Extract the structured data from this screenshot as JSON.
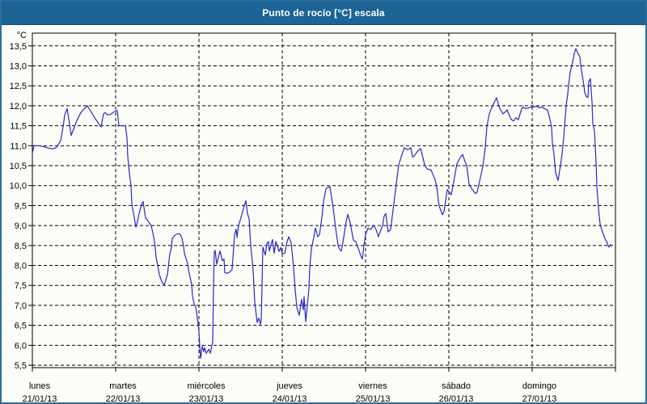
{
  "header": {
    "title": "Punto de rocío [°C] escala"
  },
  "colors": {
    "header_bg": "#1c6396",
    "header_border": "#0f4c78",
    "window_border": "#2f6d9a",
    "page_bg": "#fcfdf8",
    "plot_bg": "#fdfdf8",
    "grid": "#000000",
    "axis": "#000000",
    "line": "#2828c8",
    "title_text": "#ffffff",
    "label_text": "#000000"
  },
  "chart_data": {
    "type": "line",
    "title": "Punto de rocío [°C] escala",
    "xlabel": "",
    "ylabel": "°C",
    "grid": "dashed",
    "legend_position": "none",
    "ylim": [
      5.44,
      13.82
    ],
    "xlim_days": [
      0,
      7
    ],
    "y_ticks": [
      {
        "v": 5.5,
        "label": "5,5"
      },
      {
        "v": 6,
        "label": "6,0"
      },
      {
        "v": 6.5,
        "label": "6,5"
      },
      {
        "v": 7,
        "label": "7,0"
      },
      {
        "v": 7.5,
        "label": "7,5"
      },
      {
        "v": 8,
        "label": "8,0"
      },
      {
        "v": 8.5,
        "label": "8,5"
      },
      {
        "v": 9,
        "label": "9,0"
      },
      {
        "v": 9.5,
        "label": "9,5"
      },
      {
        "v": 10,
        "label": "10,0"
      },
      {
        "v": 10.5,
        "label": "10,5"
      },
      {
        "v": 11,
        "label": "11,0"
      },
      {
        "v": 11.5,
        "label": "11,5"
      },
      {
        "v": 12,
        "label": "12,0"
      },
      {
        "v": 12.5,
        "label": "12,5"
      },
      {
        "v": 13,
        "label": "13,0"
      },
      {
        "v": 13.5,
        "label": "13,5"
      }
    ],
    "x_tick_days": [
      0,
      1,
      2,
      3,
      4,
      5,
      6,
      7
    ],
    "day_labels": [
      {
        "t": 0,
        "name": "lunes",
        "date": "21/01/13"
      },
      {
        "t": 1,
        "name": "martes",
        "date": "22/01/13"
      },
      {
        "t": 2,
        "name": "miércoles",
        "date": "23/01/13"
      },
      {
        "t": 3,
        "name": "jueves",
        "date": "24/01/13"
      },
      {
        "t": 4,
        "name": "viernes",
        "date": "25/01/13"
      },
      {
        "t": 5,
        "name": "sábado",
        "date": "26/01/13"
      },
      {
        "t": 6,
        "name": "domingo",
        "date": "27/01/13"
      }
    ],
    "series": [
      {
        "name": "Punto de rocío [°C]",
        "color": "#2828c8",
        "points": [
          [
            0,
            10.8
          ],
          [
            0.019,
            11.0
          ],
          [
            0.078,
            11.0
          ],
          [
            0.146,
            10.97
          ],
          [
            0.194,
            10.94
          ],
          [
            0.243,
            10.92
          ],
          [
            0.291,
            10.96
          ],
          [
            0.34,
            11.13
          ],
          [
            0.369,
            11.47
          ],
          [
            0.388,
            11.77
          ],
          [
            0.417,
            11.93
          ],
          [
            0.437,
            11.67
          ],
          [
            0.466,
            11.26
          ],
          [
            0.505,
            11.47
          ],
          [
            0.534,
            11.63
          ],
          [
            0.583,
            11.83
          ],
          [
            0.621,
            11.92
          ],
          [
            0.66,
            12.0
          ],
          [
            0.699,
            11.87
          ],
          [
            0.728,
            11.77
          ],
          [
            0.757,
            11.67
          ],
          [
            0.796,
            11.55
          ],
          [
            0.825,
            11.47
          ],
          [
            0.854,
            11.8
          ],
          [
            0.874,
            11.83
          ],
          [
            0.903,
            11.77
          ],
          [
            0.942,
            11.79
          ],
          [
            0.981,
            11.85
          ],
          [
            1.019,
            11.88
          ],
          [
            1.039,
            11.5
          ],
          [
            1.117,
            11.5
          ],
          [
            1.136,
            11.2
          ],
          [
            1.146,
            10.72
          ],
          [
            1.165,
            10.3
          ],
          [
            1.184,
            10.0
          ],
          [
            1.194,
            9.54
          ],
          [
            1.223,
            9.2
          ],
          [
            1.243,
            8.96
          ],
          [
            1.262,
            9.1
          ],
          [
            1.282,
            9.3
          ],
          [
            1.311,
            9.53
          ],
          [
            1.33,
            9.6
          ],
          [
            1.359,
            9.18
          ],
          [
            1.379,
            9.14
          ],
          [
            1.408,
            9.05
          ],
          [
            1.427,
            9.0
          ],
          [
            1.456,
            8.72
          ],
          [
            1.476,
            8.45
          ],
          [
            1.485,
            8.2
          ],
          [
            1.505,
            8.0
          ],
          [
            1.524,
            7.77
          ],
          [
            1.553,
            7.6
          ],
          [
            1.583,
            7.5
          ],
          [
            1.621,
            7.77
          ],
          [
            1.65,
            8.28
          ],
          [
            1.67,
            8.45
          ],
          [
            1.68,
            8.68
          ],
          [
            1.718,
            8.77
          ],
          [
            1.757,
            8.8
          ],
          [
            1.777,
            8.77
          ],
          [
            1.796,
            8.68
          ],
          [
            1.816,
            8.48
          ],
          [
            1.825,
            8.3
          ],
          [
            1.864,
            8.05
          ],
          [
            1.874,
            7.9
          ],
          [
            1.893,
            7.7
          ],
          [
            1.913,
            7.54
          ],
          [
            1.922,
            7.23
          ],
          [
            1.942,
            7.05
          ],
          [
            1.961,
            6.95
          ],
          [
            1.971,
            6.84
          ],
          [
            1.99,
            6.52
          ],
          [
            2.0,
            6.35
          ],
          [
            2.01,
            5.95
          ],
          [
            2.019,
            5.67
          ],
          [
            2.039,
            5.98
          ],
          [
            2.058,
            5.84
          ],
          [
            2.068,
            5.94
          ],
          [
            2.087,
            5.8
          ],
          [
            2.117,
            5.9
          ],
          [
            2.136,
            5.8
          ],
          [
            2.155,
            6.0
          ],
          [
            2.165,
            6.08
          ],
          [
            2.175,
            7.5
          ],
          [
            2.184,
            8.33
          ],
          [
            2.194,
            8.38
          ],
          [
            2.214,
            8.03
          ],
          [
            2.252,
            8.36
          ],
          [
            2.282,
            8.12
          ],
          [
            2.301,
            8.16
          ],
          [
            2.311,
            7.82
          ],
          [
            2.34,
            7.8
          ],
          [
            2.379,
            7.85
          ],
          [
            2.398,
            7.9
          ],
          [
            2.427,
            8.77
          ],
          [
            2.447,
            8.91
          ],
          [
            2.456,
            8.7
          ],
          [
            2.476,
            9.0
          ],
          [
            2.505,
            9.2
          ],
          [
            2.544,
            9.5
          ],
          [
            2.563,
            9.62
          ],
          [
            2.583,
            9.3
          ],
          [
            2.602,
            9.17
          ],
          [
            2.621,
            8.5
          ],
          [
            2.641,
            8.1
          ],
          [
            2.65,
            7.9
          ],
          [
            2.67,
            7.08
          ],
          [
            2.689,
            6.74
          ],
          [
            2.699,
            6.57
          ],
          [
            2.718,
            6.68
          ],
          [
            2.738,
            6.53
          ],
          [
            2.748,
            6.63
          ],
          [
            2.757,
            7.5
          ],
          [
            2.767,
            8.46
          ],
          [
            2.796,
            8.26
          ],
          [
            2.816,
            8.55
          ],
          [
            2.835,
            8.6
          ],
          [
            2.845,
            8.36
          ],
          [
            2.883,
            8.65
          ],
          [
            2.903,
            8.3
          ],
          [
            2.922,
            8.6
          ],
          [
            2.942,
            8.5
          ],
          [
            2.961,
            8.35
          ],
          [
            2.981,
            8.45
          ],
          [
            3.0,
            8.3
          ],
          [
            3.029,
            8.3
          ],
          [
            3.058,
            8.6
          ],
          [
            3.078,
            8.72
          ],
          [
            3.107,
            8.57
          ],
          [
            3.136,
            7.96
          ],
          [
            3.155,
            7.4
          ],
          [
            3.175,
            6.95
          ],
          [
            3.204,
            6.75
          ],
          [
            3.233,
            7.15
          ],
          [
            3.252,
            6.89
          ],
          [
            3.262,
            7.22
          ],
          [
            3.282,
            6.59
          ],
          [
            3.301,
            7.0
          ],
          [
            3.32,
            7.42
          ],
          [
            3.33,
            7.96
          ],
          [
            3.35,
            8.43
          ],
          [
            3.379,
            8.7
          ],
          [
            3.398,
            8.94
          ],
          [
            3.427,
            8.72
          ],
          [
            3.447,
            8.77
          ],
          [
            3.476,
            9.2
          ],
          [
            3.495,
            9.6
          ],
          [
            3.524,
            9.92
          ],
          [
            3.544,
            9.95
          ],
          [
            3.573,
            9.97
          ],
          [
            3.592,
            9.7
          ],
          [
            3.612,
            9.44
          ],
          [
            3.641,
            8.94
          ],
          [
            3.67,
            8.5
          ],
          [
            3.689,
            8.4
          ],
          [
            3.709,
            8.36
          ],
          [
            3.738,
            8.7
          ],
          [
            3.767,
            9.1
          ],
          [
            3.786,
            9.28
          ],
          [
            3.816,
            9.07
          ],
          [
            3.854,
            8.63
          ],
          [
            3.883,
            8.6
          ],
          [
            3.913,
            8.43
          ],
          [
            3.942,
            8.25
          ],
          [
            3.961,
            8.16
          ],
          [
            3.981,
            8.5
          ],
          [
            4.0,
            8.77
          ],
          [
            4.029,
            8.94
          ],
          [
            4.058,
            8.9
          ],
          [
            4.097,
            9.0
          ],
          [
            4.126,
            8.9
          ],
          [
            4.155,
            8.72
          ],
          [
            4.175,
            8.84
          ],
          [
            4.204,
            9.0
          ],
          [
            4.223,
            9.24
          ],
          [
            4.243,
            9.3
          ],
          [
            4.272,
            8.84
          ],
          [
            4.301,
            8.9
          ],
          [
            4.34,
            9.55
          ],
          [
            4.369,
            10.04
          ],
          [
            4.398,
            10.52
          ],
          [
            4.437,
            10.78
          ],
          [
            4.466,
            10.95
          ],
          [
            4.505,
            10.9
          ],
          [
            4.544,
            10.95
          ],
          [
            4.563,
            10.72
          ],
          [
            4.583,
            10.74
          ],
          [
            4.621,
            10.85
          ],
          [
            4.66,
            10.93
          ],
          [
            4.689,
            10.7
          ],
          [
            4.709,
            10.52
          ],
          [
            4.738,
            10.42
          ],
          [
            4.786,
            10.39
          ],
          [
            4.835,
            10.15
          ],
          [
            4.854,
            9.97
          ],
          [
            4.883,
            9.5
          ],
          [
            4.922,
            9.27
          ],
          [
            4.942,
            9.35
          ],
          [
            4.981,
            9.9
          ],
          [
            5.0,
            9.85
          ],
          [
            5.029,
            9.77
          ],
          [
            5.058,
            10.1
          ],
          [
            5.097,
            10.55
          ],
          [
            5.136,
            10.7
          ],
          [
            5.165,
            10.78
          ],
          [
            5.194,
            10.6
          ],
          [
            5.214,
            10.52
          ],
          [
            5.243,
            10.04
          ],
          [
            5.282,
            9.9
          ],
          [
            5.32,
            9.8
          ],
          [
            5.34,
            9.84
          ],
          [
            5.379,
            10.2
          ],
          [
            5.408,
            10.48
          ],
          [
            5.437,
            10.95
          ],
          [
            5.456,
            11.48
          ],
          [
            5.485,
            11.8
          ],
          [
            5.524,
            12.0
          ],
          [
            5.573,
            12.2
          ],
          [
            5.592,
            12.05
          ],
          [
            5.612,
            11.93
          ],
          [
            5.65,
            11.8
          ],
          [
            5.68,
            11.85
          ],
          [
            5.699,
            11.9
          ],
          [
            5.728,
            11.75
          ],
          [
            5.748,
            11.66
          ],
          [
            5.777,
            11.62
          ],
          [
            5.806,
            11.7
          ],
          [
            5.835,
            11.65
          ],
          [
            5.874,
            11.93
          ],
          [
            5.893,
            11.97
          ],
          [
            5.922,
            11.93
          ],
          [
            5.961,
            11.95
          ],
          [
            5.99,
            11.97
          ],
          [
            6.019,
            11.97
          ],
          [
            6.049,
            11.99
          ],
          [
            6.087,
            11.95
          ],
          [
            6.117,
            11.97
          ],
          [
            6.146,
            11.93
          ],
          [
            6.184,
            11.9
          ],
          [
            6.214,
            11.66
          ],
          [
            6.233,
            11.46
          ],
          [
            6.243,
            11.08
          ],
          [
            6.262,
            10.78
          ],
          [
            6.282,
            10.32
          ],
          [
            6.311,
            10.13
          ],
          [
            6.34,
            10.5
          ],
          [
            6.359,
            10.8
          ],
          [
            6.379,
            11.2
          ],
          [
            6.408,
            12.0
          ],
          [
            6.427,
            12.3
          ],
          [
            6.437,
            12.5
          ],
          [
            6.456,
            12.85
          ],
          [
            6.476,
            13.0
          ],
          [
            6.485,
            13.1
          ],
          [
            6.505,
            13.3
          ],
          [
            6.524,
            13.43
          ],
          [
            6.553,
            13.3
          ],
          [
            6.573,
            13.22
          ],
          [
            6.583,
            13.02
          ],
          [
            6.602,
            12.76
          ],
          [
            6.621,
            12.5
          ],
          [
            6.631,
            12.33
          ],
          [
            6.65,
            12.23
          ],
          [
            6.67,
            12.21
          ],
          [
            6.68,
            12.6
          ],
          [
            6.699,
            12.68
          ],
          [
            6.718,
            12.1
          ],
          [
            6.728,
            11.54
          ],
          [
            6.748,
            11.38
          ],
          [
            6.767,
            10.6
          ],
          [
            6.777,
            9.98
          ],
          [
            6.796,
            9.44
          ],
          [
            6.816,
            9.03
          ],
          [
            6.825,
            8.96
          ],
          [
            6.845,
            8.84
          ],
          [
            6.874,
            8.67
          ],
          [
            6.893,
            8.6
          ],
          [
            6.913,
            8.5
          ],
          [
            6.922,
            8.46
          ],
          [
            6.942,
            8.53
          ]
        ]
      }
    ]
  }
}
